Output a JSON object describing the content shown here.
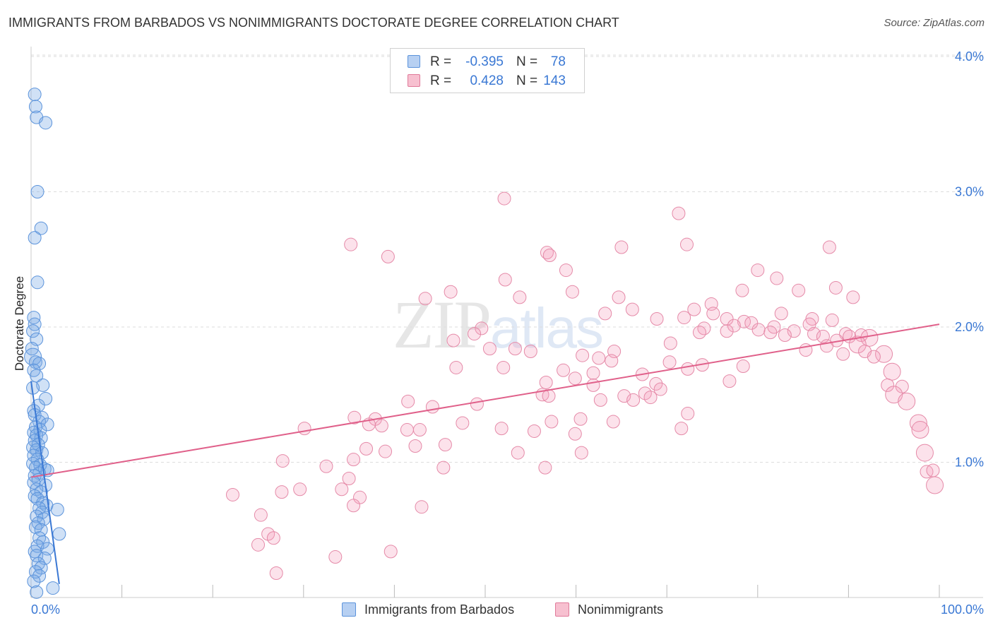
{
  "header": {
    "title": "IMMIGRANTS FROM BARBADOS VS NONIMMIGRANTS DOCTORATE DEGREE CORRELATION CHART",
    "source": "Source: ZipAtlas.com"
  },
  "watermark": {
    "zip": "ZIP",
    "atlas": "atlas"
  },
  "legend": {
    "r_label": "R =",
    "n_label": "N =",
    "rows": [
      {
        "r": "-0.395",
        "n": "78",
        "color": "#5b93db",
        "fill": "#b7d0f2"
      },
      {
        "r": "0.428",
        "n": "143",
        "color": "#e07a9a",
        "fill": "#f7c0d0"
      }
    ]
  },
  "bottom_legend": {
    "series_a": "Immigrants from Barbados",
    "series_b": "Nonimmigrants"
  },
  "colors": {
    "blue": "#3a78d4",
    "blue_fill": "rgba(120,168,230,0.35)",
    "blue_stroke": "#5b93db",
    "pink": "#e0608a",
    "pink_fill": "rgba(244,160,188,0.30)",
    "pink_stroke": "#e58aa8",
    "grid": "#dddddd"
  },
  "chart_data": {
    "type": "scatter",
    "title": "IMMIGRANTS FROM BARBADOS VS NONIMMIGRANTS DOCTORATE DEGREE CORRELATION CHART",
    "xlabel": "",
    "ylabel": "Doctorate Degree",
    "xlim": [
      0,
      100
    ],
    "ylim": [
      0,
      4.0
    ],
    "x_tick_labels": [
      "0.0%",
      "100.0%"
    ],
    "y_ticks": [
      1.0,
      2.0,
      3.0,
      4.0
    ],
    "y_tick_labels": [
      "1.0%",
      "2.0%",
      "3.0%",
      "4.0%"
    ],
    "grid": true,
    "series": [
      {
        "name": "Immigrants from Barbados",
        "r": -0.395,
        "n": 78,
        "trend": {
          "x": [
            0.0,
            3.1
          ],
          "y": [
            1.6,
            0.1
          ]
        },
        "points": [
          [
            0.4,
            3.72,
            1
          ],
          [
            0.5,
            3.63,
            1
          ],
          [
            0.6,
            3.55,
            1
          ],
          [
            1.6,
            3.51,
            1
          ],
          [
            0.7,
            3.0,
            1
          ],
          [
            1.1,
            2.73,
            1
          ],
          [
            0.4,
            2.66,
            1
          ],
          [
            0.7,
            2.33,
            1
          ],
          [
            0.3,
            2.07,
            1
          ],
          [
            0.4,
            2.02,
            1
          ],
          [
            0.2,
            1.97,
            1
          ],
          [
            0.6,
            1.91,
            1
          ],
          [
            0.1,
            1.84,
            1
          ],
          [
            0.2,
            1.78,
            2
          ],
          [
            0.5,
            1.74,
            1
          ],
          [
            0.9,
            1.73,
            1
          ],
          [
            0.3,
            1.68,
            1
          ],
          [
            0.6,
            1.64,
            1
          ],
          [
            1.3,
            1.57,
            1
          ],
          [
            0.2,
            1.55,
            1
          ],
          [
            1.6,
            1.47,
            1
          ],
          [
            0.8,
            1.42,
            1
          ],
          [
            0.3,
            1.38,
            1
          ],
          [
            0.4,
            1.35,
            1
          ],
          [
            1.2,
            1.33,
            1
          ],
          [
            0.9,
            1.3,
            1
          ],
          [
            1.8,
            1.28,
            1
          ],
          [
            0.5,
            1.26,
            1
          ],
          [
            1.0,
            1.24,
            1
          ],
          [
            0.3,
            1.22,
            1
          ],
          [
            0.6,
            1.2,
            1
          ],
          [
            1.1,
            1.18,
            1
          ],
          [
            0.4,
            1.16,
            1
          ],
          [
            0.8,
            1.13,
            1
          ],
          [
            0.2,
            1.11,
            1
          ],
          [
            0.6,
            1.09,
            1
          ],
          [
            1.2,
            1.07,
            1
          ],
          [
            0.3,
            1.05,
            1
          ],
          [
            0.7,
            1.02,
            1
          ],
          [
            0.2,
            0.99,
            1
          ],
          [
            1.0,
            0.98,
            1
          ],
          [
            0.5,
            0.96,
            1
          ],
          [
            1.5,
            0.95,
            1
          ],
          [
            1.8,
            0.94,
            1
          ],
          [
            0.9,
            0.92,
            1
          ],
          [
            0.4,
            0.9,
            1
          ],
          [
            0.8,
            0.87,
            1
          ],
          [
            0.3,
            0.85,
            1
          ],
          [
            1.6,
            0.83,
            1
          ],
          [
            0.6,
            0.8,
            1
          ],
          [
            1.1,
            0.78,
            1
          ],
          [
            0.4,
            0.75,
            1
          ],
          [
            0.7,
            0.73,
            1
          ],
          [
            1.3,
            0.7,
            1
          ],
          [
            1.7,
            0.68,
            1
          ],
          [
            0.9,
            0.66,
            1
          ],
          [
            2.9,
            0.65,
            1
          ],
          [
            1.2,
            0.63,
            1
          ],
          [
            0.6,
            0.6,
            1
          ],
          [
            1.4,
            0.58,
            1
          ],
          [
            0.8,
            0.55,
            1
          ],
          [
            0.5,
            0.52,
            1
          ],
          [
            1.1,
            0.5,
            1
          ],
          [
            3.1,
            0.47,
            1
          ],
          [
            0.9,
            0.44,
            1
          ],
          [
            1.3,
            0.41,
            1
          ],
          [
            0.7,
            0.38,
            1
          ],
          [
            1.8,
            0.36,
            1
          ],
          [
            0.4,
            0.34,
            1
          ],
          [
            0.6,
            0.31,
            1
          ],
          [
            1.5,
            0.29,
            1
          ],
          [
            0.8,
            0.25,
            1
          ],
          [
            1.1,
            0.22,
            1
          ],
          [
            0.5,
            0.19,
            1
          ],
          [
            0.9,
            0.16,
            1
          ],
          [
            0.3,
            0.12,
            1
          ],
          [
            2.4,
            0.07,
            1
          ],
          [
            0.6,
            0.04,
            1
          ]
        ]
      },
      {
        "name": "Nonimmigrants",
        "r": 0.428,
        "n": 143,
        "trend": {
          "x": [
            0.0,
            100.0
          ],
          "y": [
            0.89,
            2.02
          ]
        },
        "points": [
          [
            52.1,
            2.95,
            1
          ],
          [
            71.3,
            2.84,
            1
          ],
          [
            35.2,
            2.61,
            1
          ],
          [
            72.2,
            2.61,
            1
          ],
          [
            65.0,
            2.59,
            1
          ],
          [
            87.9,
            2.59,
            1
          ],
          [
            56.8,
            2.55,
            1
          ],
          [
            39.3,
            2.52,
            1
          ],
          [
            57.1,
            2.53,
            1
          ],
          [
            58.9,
            2.42,
            1
          ],
          [
            80.0,
            2.42,
            1
          ],
          [
            52.2,
            2.35,
            1
          ],
          [
            82.1,
            2.36,
            1
          ],
          [
            88.6,
            2.29,
            1
          ],
          [
            46.2,
            2.26,
            1
          ],
          [
            59.6,
            2.26,
            1
          ],
          [
            78.3,
            2.27,
            1
          ],
          [
            84.5,
            2.27,
            1
          ],
          [
            43.4,
            2.21,
            1
          ],
          [
            53.8,
            2.22,
            1
          ],
          [
            64.7,
            2.22,
            1
          ],
          [
            90.5,
            2.22,
            1
          ],
          [
            74.9,
            2.17,
            1
          ],
          [
            66.2,
            2.13,
            1
          ],
          [
            73.0,
            2.13,
            1
          ],
          [
            63.2,
            2.1,
            1
          ],
          [
            75.1,
            2.1,
            1
          ],
          [
            82.6,
            2.1,
            1
          ],
          [
            71.9,
            2.07,
            1
          ],
          [
            68.9,
            2.06,
            1
          ],
          [
            86.0,
            2.06,
            1
          ],
          [
            76.6,
            2.06,
            1
          ],
          [
            88.2,
            2.05,
            1
          ],
          [
            78.5,
            2.04,
            1
          ],
          [
            79.3,
            2.03,
            1
          ],
          [
            85.7,
            2.02,
            1
          ],
          [
            77.4,
            2.01,
            1
          ],
          [
            81.8,
            2.0,
            1
          ],
          [
            49.6,
            1.99,
            1
          ],
          [
            74.1,
            1.99,
            1
          ],
          [
            76.6,
            1.97,
            1
          ],
          [
            80.1,
            1.98,
            1
          ],
          [
            84.0,
            1.97,
            1
          ],
          [
            48.8,
            1.95,
            1
          ],
          [
            81.4,
            1.96,
            1
          ],
          [
            73.6,
            1.96,
            1
          ],
          [
            86.2,
            1.95,
            1
          ],
          [
            89.7,
            1.95,
            1
          ],
          [
            91.4,
            1.94,
            1
          ],
          [
            83.0,
            1.94,
            1
          ],
          [
            87.2,
            1.93,
            1
          ],
          [
            90.1,
            1.93,
            1
          ],
          [
            92.3,
            1.92,
            2
          ],
          [
            88.7,
            1.9,
            1
          ],
          [
            46.5,
            1.9,
            1
          ],
          [
            70.4,
            1.88,
            1
          ],
          [
            91.0,
            1.87,
            2
          ],
          [
            87.6,
            1.86,
            1
          ],
          [
            50.5,
            1.84,
            1
          ],
          [
            53.3,
            1.84,
            1
          ],
          [
            55.0,
            1.82,
            1
          ],
          [
            64.2,
            1.82,
            1
          ],
          [
            85.3,
            1.83,
            1
          ],
          [
            91.8,
            1.82,
            1
          ],
          [
            89.4,
            1.8,
            1
          ],
          [
            93.9,
            1.8,
            2
          ],
          [
            92.8,
            1.78,
            1
          ],
          [
            60.7,
            1.79,
            1
          ],
          [
            62.5,
            1.77,
            1
          ],
          [
            63.9,
            1.75,
            1
          ],
          [
            70.3,
            1.74,
            1
          ],
          [
            73.9,
            1.72,
            1
          ],
          [
            72.3,
            1.69,
            1
          ],
          [
            78.4,
            1.71,
            1
          ],
          [
            52.0,
            1.7,
            1
          ],
          [
            46.8,
            1.7,
            1
          ],
          [
            58.6,
            1.68,
            1
          ],
          [
            61.9,
            1.66,
            1
          ],
          [
            94.8,
            1.67,
            2
          ],
          [
            67.3,
            1.65,
            1
          ],
          [
            59.9,
            1.62,
            1
          ],
          [
            56.7,
            1.59,
            1
          ],
          [
            61.9,
            1.57,
            1
          ],
          [
            76.9,
            1.6,
            1
          ],
          [
            68.8,
            1.58,
            1
          ],
          [
            94.3,
            1.57,
            1
          ],
          [
            95.9,
            1.56,
            1
          ],
          [
            69.3,
            1.54,
            1
          ],
          [
            67.6,
            1.51,
            1
          ],
          [
            56.3,
            1.5,
            1
          ],
          [
            57.0,
            1.49,
            1
          ],
          [
            65.3,
            1.49,
            1
          ],
          [
            68.2,
            1.48,
            1
          ],
          [
            95.0,
            1.5,
            2
          ],
          [
            66.3,
            1.46,
            1
          ],
          [
            62.7,
            1.46,
            1
          ],
          [
            96.4,
            1.45,
            2
          ],
          [
            41.5,
            1.45,
            1
          ],
          [
            49.1,
            1.43,
            1
          ],
          [
            44.2,
            1.41,
            1
          ],
          [
            72.3,
            1.36,
            1
          ],
          [
            35.6,
            1.33,
            1
          ],
          [
            37.9,
            1.32,
            1
          ],
          [
            37.2,
            1.28,
            1
          ],
          [
            38.6,
            1.27,
            1
          ],
          [
            47.5,
            1.29,
            1
          ],
          [
            57.3,
            1.3,
            1
          ],
          [
            60.5,
            1.32,
            1
          ],
          [
            64.1,
            1.3,
            1
          ],
          [
            97.7,
            1.29,
            2
          ],
          [
            41.4,
            1.24,
            1
          ],
          [
            42.8,
            1.24,
            1
          ],
          [
            51.8,
            1.25,
            1
          ],
          [
            55.4,
            1.23,
            1
          ],
          [
            59.9,
            1.21,
            1
          ],
          [
            71.6,
            1.25,
            1
          ],
          [
            97.9,
            1.24,
            2
          ],
          [
            30.1,
            1.25,
            1
          ],
          [
            42.3,
            1.12,
            1
          ],
          [
            45.6,
            1.13,
            1
          ],
          [
            36.9,
            1.1,
            1
          ],
          [
            39.0,
            1.08,
            1
          ],
          [
            53.6,
            1.07,
            1
          ],
          [
            60.6,
            1.07,
            1
          ],
          [
            35.5,
            1.02,
            1
          ],
          [
            98.4,
            1.07,
            2
          ],
          [
            27.7,
            1.01,
            1
          ],
          [
            32.5,
            0.97,
            1
          ],
          [
            45.4,
            0.96,
            1
          ],
          [
            56.6,
            0.96,
            1
          ],
          [
            98.6,
            0.93,
            1
          ],
          [
            99.3,
            0.94,
            1
          ],
          [
            35.0,
            0.88,
            1
          ],
          [
            29.6,
            0.8,
            1
          ],
          [
            34.2,
            0.8,
            1
          ],
          [
            27.6,
            0.78,
            1
          ],
          [
            22.2,
            0.76,
            1
          ],
          [
            36.2,
            0.74,
            1
          ],
          [
            99.5,
            0.83,
            2
          ],
          [
            35.5,
            0.68,
            1
          ],
          [
            43.0,
            0.67,
            1
          ],
          [
            25.3,
            0.61,
            1
          ],
          [
            26.1,
            0.47,
            1
          ],
          [
            26.7,
            0.44,
            1
          ],
          [
            25.0,
            0.39,
            1
          ],
          [
            39.6,
            0.34,
            1
          ],
          [
            33.5,
            0.3,
            1
          ],
          [
            27.0,
            0.18,
            1
          ]
        ]
      }
    ]
  }
}
